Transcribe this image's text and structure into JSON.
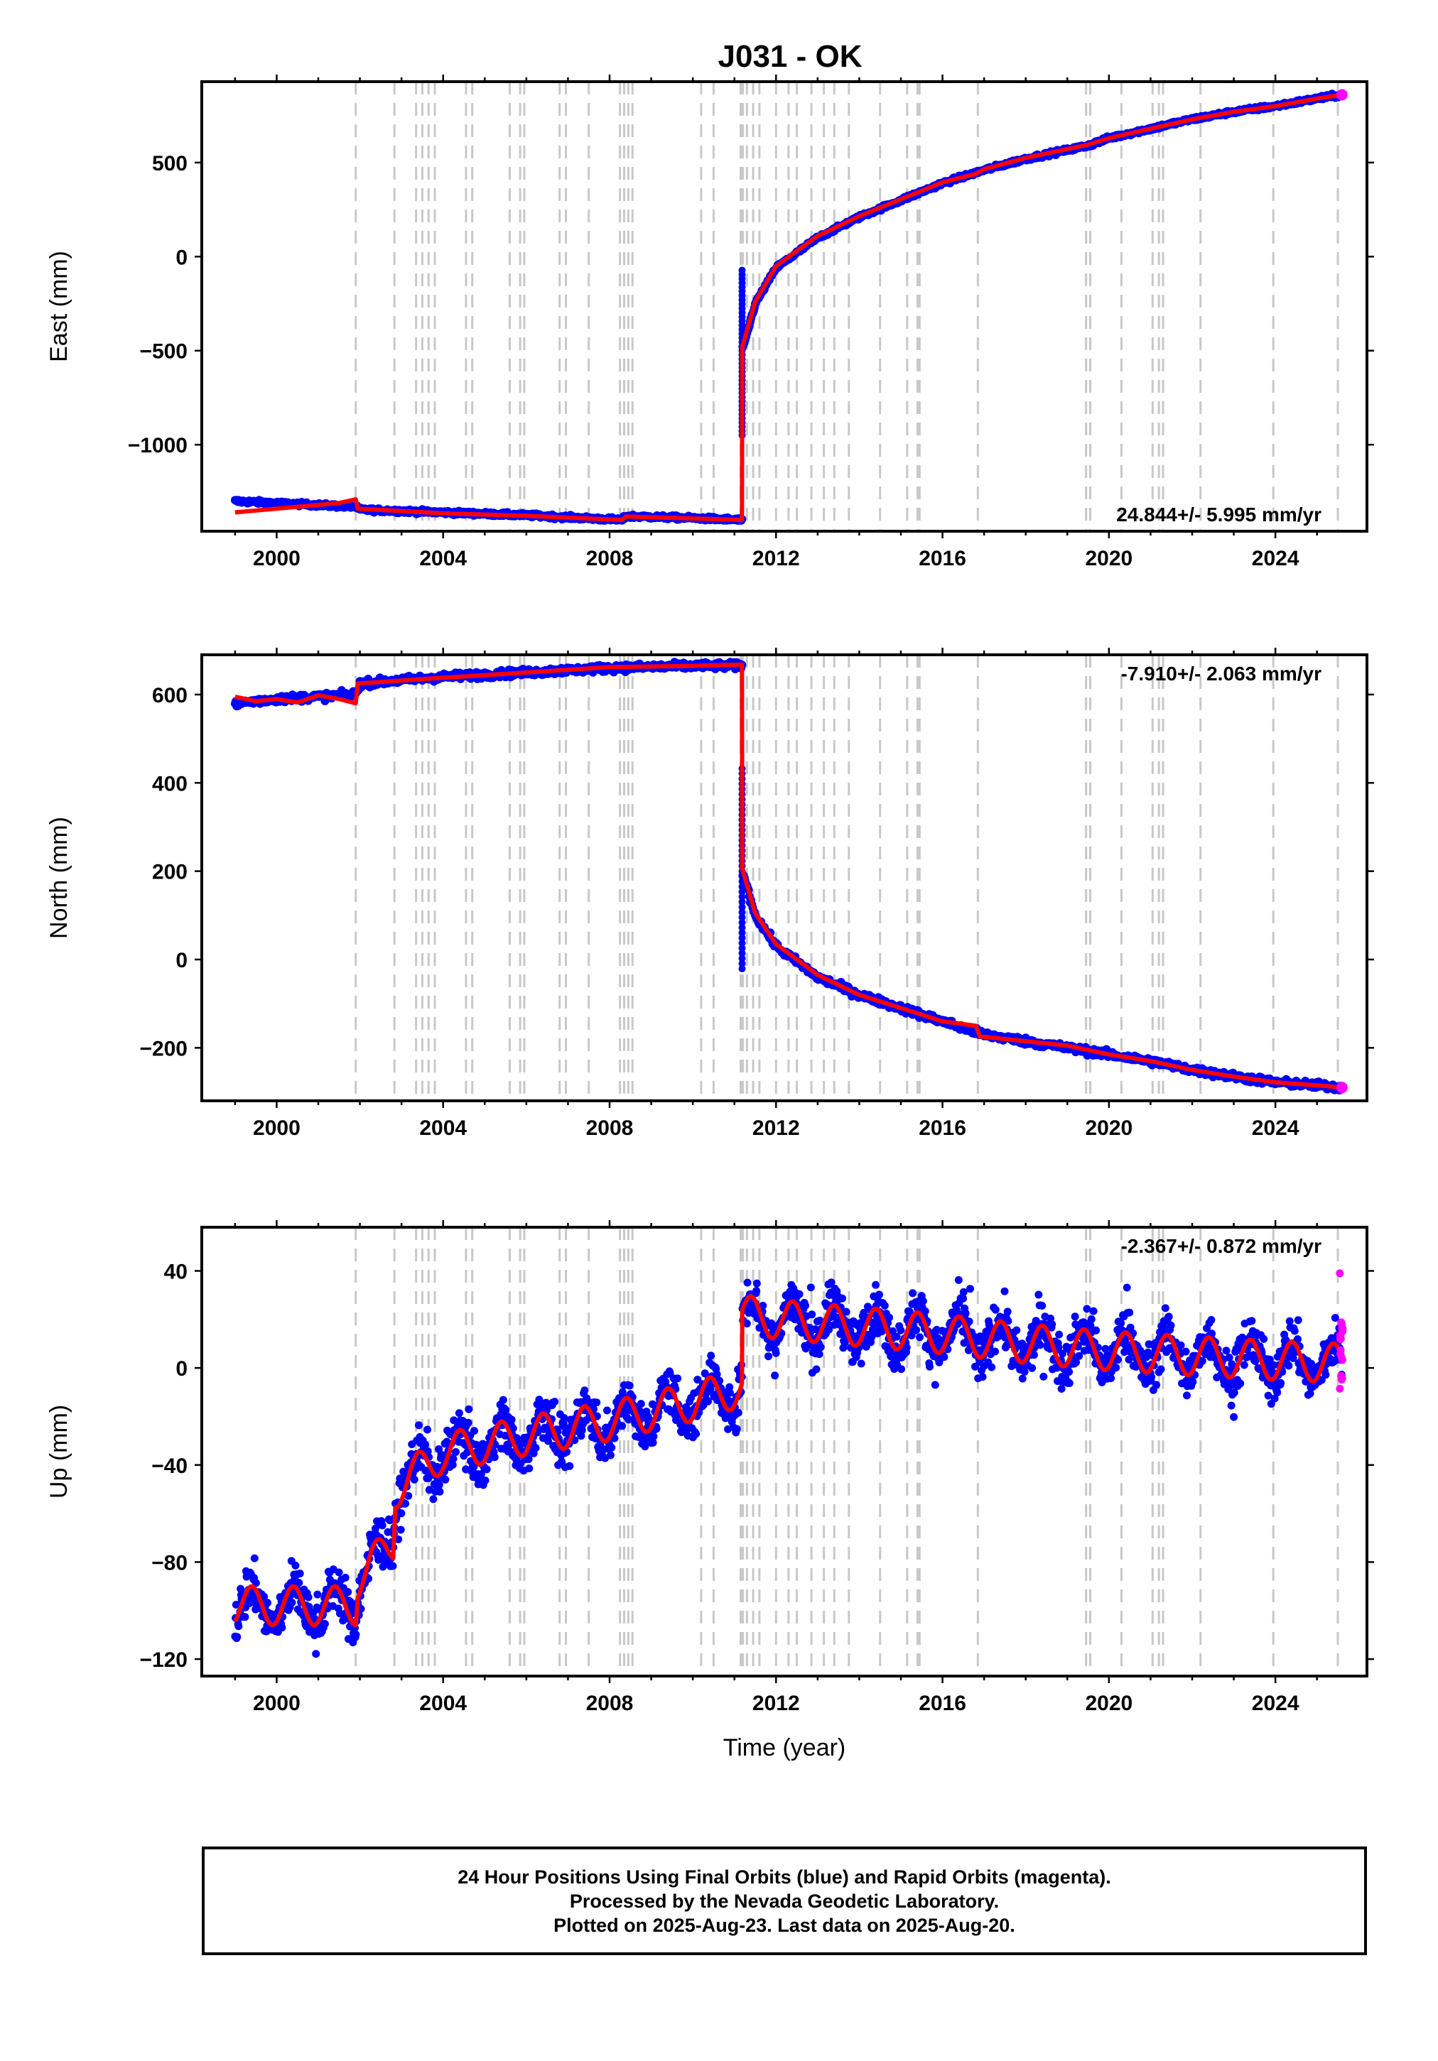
{
  "title": "J031 - OK",
  "footer": {
    "line1": "24 Hour Positions Using Final Orbits (blue) and Rapid Orbits (magenta).",
    "line2": "Processed by the Nevada Geodetic Laboratory.",
    "line3": "Plotted on 2025-Aug-23. Last data on 2025-Aug-20."
  },
  "colors": {
    "final_orbits": "#0000ff",
    "rapid_orbits": "#ff00ff",
    "model": "#ff0000",
    "event_lines": "#c8c8c8"
  },
  "chart_data": [
    {
      "type": "scatter",
      "name": "east",
      "ylabel": "East (mm)",
      "xlabel": "",
      "xlim": [
        1998.2,
        2026.2
      ],
      "ylim": [
        -1460,
        930
      ],
      "xticks": [
        2000,
        2004,
        2008,
        2012,
        2016,
        2020,
        2024
      ],
      "yticks": [
        500,
        0,
        -500,
        -1000
      ],
      "ytick_labels": [
        "500",
        "0",
        "−500",
        "−1000"
      ],
      "rate_label": "24.844+/- 5.995 mm/yr",
      "rate_position": "bottom-right",
      "grid": false,
      "series": [
        {
          "x": [
            1999.0,
            2001.9,
            2002.0,
            2004.0,
            2006.0,
            2008.3,
            2008.4,
            2010.0,
            2011.18,
            2011.19,
            2011.5,
            2012.0,
            2013.0,
            2014.0,
            2015.0,
            2016.0,
            2017.0,
            2018.0,
            2019.5,
            2020.0,
            2021.0,
            2022.0,
            2023.0,
            2024.0,
            2025.0,
            2025.6
          ],
          "y": [
            -1300,
            -1330,
            -1345,
            -1360,
            -1375,
            -1400,
            -1380,
            -1390,
            -1400,
            -500,
            -250,
            -60,
            100,
            210,
            300,
            390,
            460,
            520,
            590,
            630,
            680,
            730,
            770,
            800,
            840,
            860
          ]
        },
        {
          "x": [
            1999.0,
            2001.5,
            2001.9,
            2001.95,
            2004.0,
            2006.0,
            2008.3,
            2008.4,
            2010.0,
            2011.18,
            2011.19,
            2011.5,
            2012.0,
            2013.0,
            2014.0,
            2015.0,
            2016.0,
            2016.8,
            2017.0,
            2018.0,
            2019.5,
            2020.0,
            2021.0,
            2022.0,
            2023.0,
            2024.0,
            2025.0,
            2025.6
          ],
          "y": [
            -1360,
            -1310,
            -1290,
            -1340,
            -1365,
            -1378,
            -1400,
            -1382,
            -1392,
            -1400,
            -480,
            -240,
            -50,
            110,
            215,
            305,
            395,
            440,
            465,
            525,
            595,
            630,
            680,
            730,
            770,
            800,
            840,
            860
          ]
        }
      ]
    },
    {
      "type": "scatter",
      "name": "north",
      "ylabel": "North (mm)",
      "xlabel": "",
      "xlim": [
        1998.2,
        2026.2
      ],
      "ylim": [
        -320,
        690
      ],
      "xticks": [
        2000,
        2004,
        2008,
        2012,
        2016,
        2020,
        2024
      ],
      "yticks": [
        600,
        400,
        200,
        0,
        -200
      ],
      "ytick_labels": [
        "600",
        "400",
        "200",
        "0",
        "−200"
      ],
      "rate_label": "-7.910+/- 2.063 mm/yr",
      "rate_position": "top-right",
      "grid": false,
      "series": [
        {
          "x": [
            1999.0,
            2000.0,
            2001.0,
            2001.9,
            2002.0,
            2004.0,
            2006.0,
            2008.0,
            2010.0,
            2011.18,
            2011.19,
            2011.5,
            2012.0,
            2013.0,
            2014.0,
            2015.0,
            2016.0,
            2017.0,
            2018.0,
            2019.0,
            2020.0,
            2021.0,
            2022.0,
            2023.0,
            2024.0,
            2025.0,
            2025.6
          ],
          "y": [
            580,
            590,
            595,
            600,
            625,
            640,
            650,
            660,
            665,
            665,
            200,
            100,
            30,
            -40,
            -80,
            -110,
            -140,
            -170,
            -185,
            -200,
            -215,
            -230,
            -250,
            -265,
            -278,
            -285,
            -290
          ]
        },
        {
          "x": [
            1999.0,
            1999.5,
            2000.0,
            2000.5,
            2001.0,
            2001.5,
            2001.9,
            2001.95,
            2004.0,
            2006.0,
            2008.0,
            2010.0,
            2011.18,
            2011.19,
            2011.5,
            2012.0,
            2013.0,
            2014.0,
            2015.0,
            2016.0,
            2016.8,
            2016.9,
            2017.0,
            2018.0,
            2019.0,
            2019.5,
            2020.0,
            2021.0,
            2022.0,
            2023.0,
            2024.0,
            2025.0,
            2025.6
          ],
          "y": [
            595,
            585,
            590,
            582,
            598,
            590,
            580,
            625,
            638,
            650,
            662,
            665,
            668,
            205,
            105,
            35,
            -35,
            -80,
            -110,
            -140,
            -150,
            -175,
            -175,
            -185,
            -195,
            -205,
            -215,
            -230,
            -250,
            -265,
            -278,
            -285,
            -290
          ]
        }
      ]
    },
    {
      "type": "scatter",
      "name": "up",
      "ylabel": "Up (mm)",
      "xlabel": "Time (year)",
      "xlim": [
        1998.2,
        2026.2
      ],
      "ylim": [
        -127,
        58
      ],
      "xticks": [
        2000,
        2004,
        2008,
        2012,
        2016,
        2020,
        2024
      ],
      "yticks": [
        40,
        0,
        -40,
        -80,
        -120
      ],
      "ytick_labels": [
        "40",
        "0",
        "−40",
        "−80",
        "−120"
      ],
      "rate_label": "-2.367+/- 0.872 mm/yr",
      "rate_position": "top-right",
      "grid": false,
      "series": [
        {
          "x": [
            1999.0,
            2001.9,
            2001.95,
            2002.8,
            2002.85,
            2004.0,
            2006.0,
            2008.0,
            2010.0,
            2011.18,
            2011.19,
            2012.0,
            2014.0,
            2016.0,
            2018.0,
            2020.0,
            2022.0,
            2024.0,
            2025.6
          ],
          "y": [
            -98,
            -98,
            -87,
            -72,
            -50,
            -35,
            -28,
            -22,
            -14,
            -8,
            22,
            20,
            17,
            14,
            10,
            7,
            5,
            3,
            2
          ]
        },
        {
          "x": [
            1999.0,
            2001.95,
            2002.85,
            2011.19,
            2025.6
          ],
          "y": [
            -93,
            -80,
            -47,
            22,
            5
          ]
        }
      ],
      "rapid_orbits": {
        "x": [
          2025.55,
          2025.6,
          2025.62
        ],
        "y": [
          39,
          5,
          -10
        ]
      }
    }
  ],
  "events": [
    2001.9,
    2002.83,
    2003.35,
    2003.5,
    2003.65,
    2003.8,
    2004.55,
    2004.7,
    2005.6,
    2005.85,
    2005.95,
    2006.8,
    2006.95,
    2007.5,
    2008.25,
    2008.35,
    2008.45,
    2008.55,
    2010.2,
    2010.5,
    2011.15,
    2011.2,
    2011.3,
    2011.45,
    2011.6,
    2012.0,
    2012.3,
    2012.5,
    2012.85,
    2013.15,
    2013.4,
    2013.75,
    2014.5,
    2015.15,
    2015.4,
    2015.45,
    2016.85,
    2019.45,
    2019.55,
    2020.3,
    2021.05,
    2021.2,
    2021.3,
    2022.2,
    2023.95,
    2025.5
  ]
}
